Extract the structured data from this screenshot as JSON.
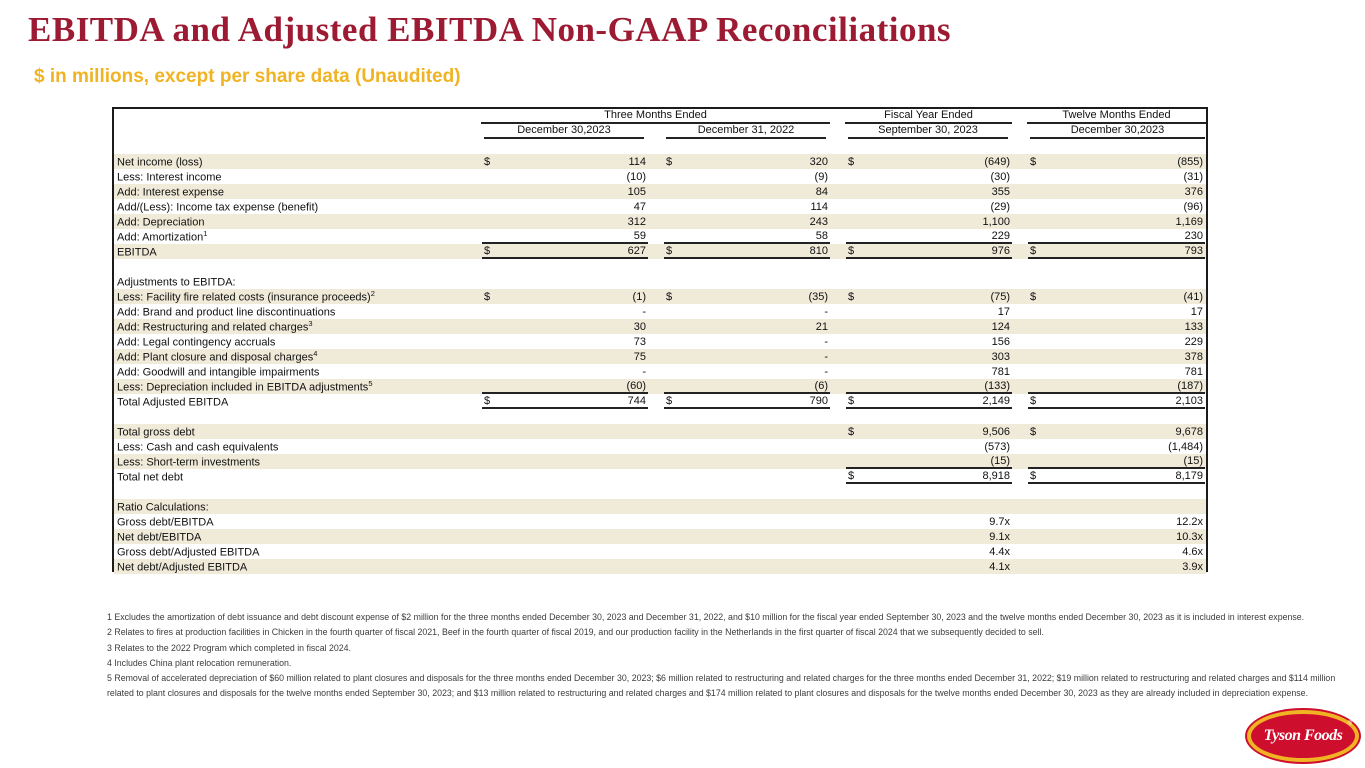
{
  "page": {
    "title": "EBITDA and Adjusted EBITDA Non-GAAP Reconciliations",
    "subtitle": "$ in millions, except per share data (Unaudited)"
  },
  "colors": {
    "title_red": "#9C1B33",
    "gold": "#F0B323",
    "row_beige": "#F0EAD9",
    "logo_red": "#CE0E2D"
  },
  "table": {
    "col_groups": [
      {
        "label": "Three Months Ended",
        "span": 2
      },
      {
        "label": "Fiscal Year Ended",
        "span": 1
      },
      {
        "label": "Twelve Months Ended",
        "span": 1
      }
    ],
    "columns": [
      "December 30,2023",
      "December 31, 2022",
      "September 30, 2023",
      "December 30,2023"
    ],
    "rows": [
      {
        "label": "",
        "bg": "w",
        "cells": [
          null,
          null,
          null,
          null
        ]
      },
      {
        "label": "Net income (loss)",
        "bg": "b",
        "cells": [
          [
            "$",
            "114"
          ],
          [
            "$",
            "320"
          ],
          [
            "$",
            "(649)"
          ],
          [
            "$",
            "(855)"
          ]
        ]
      },
      {
        "label": "Less: Interest income",
        "bg": "w",
        "cells": [
          [
            "",
            "(10)"
          ],
          [
            "",
            "(9)"
          ],
          [
            "",
            "(30)"
          ],
          [
            "",
            "(31)"
          ]
        ]
      },
      {
        "label": "Add: Interest expense",
        "bg": "b",
        "cells": [
          [
            "",
            "105"
          ],
          [
            "",
            "84"
          ],
          [
            "",
            "355"
          ],
          [
            "",
            "376"
          ]
        ]
      },
      {
        "label": "Add/(Less): Income tax expense (benefit)",
        "bg": "w",
        "cells": [
          [
            "",
            "47"
          ],
          [
            "",
            "114"
          ],
          [
            "",
            "(29)"
          ],
          [
            "",
            "(96)"
          ]
        ]
      },
      {
        "label": "Add: Depreciation",
        "bg": "b",
        "cells": [
          [
            "",
            "312"
          ],
          [
            "",
            "243"
          ],
          [
            "",
            "1,100"
          ],
          [
            "",
            "1,169"
          ]
        ]
      },
      {
        "label": "Add: Amortization",
        "sup": "1",
        "bg": "w",
        "line": "bottom",
        "cells": [
          [
            "",
            "59"
          ],
          [
            "",
            "58"
          ],
          [
            "",
            "229"
          ],
          [
            "",
            "230"
          ]
        ]
      },
      {
        "label": "EBITDA",
        "bg": "b",
        "line": "bottom",
        "cells": [
          [
            "$",
            "627"
          ],
          [
            "$",
            "810"
          ],
          [
            "$",
            "976"
          ],
          [
            "$",
            "793"
          ]
        ]
      },
      {
        "label": "",
        "bg": "w",
        "cells": [
          null,
          null,
          null,
          null
        ]
      },
      {
        "label": "Adjustments to EBITDA:",
        "bg": "w",
        "cells": [
          null,
          null,
          null,
          null
        ]
      },
      {
        "label": "Less: Facility fire related costs (insurance proceeds)",
        "sup": "2",
        "bg": "b",
        "cells": [
          [
            "$",
            "(1)"
          ],
          [
            "$",
            "(35)"
          ],
          [
            "$",
            "(75)"
          ],
          [
            "$",
            "(41)"
          ]
        ]
      },
      {
        "label": "Add: Brand and product line discontinuations",
        "bg": "w",
        "cells": [
          [
            "",
            "-"
          ],
          [
            "",
            "-"
          ],
          [
            "",
            "17"
          ],
          [
            "",
            "17"
          ]
        ]
      },
      {
        "label": "Add: Restructuring and related charges",
        "sup": "3",
        "bg": "b",
        "cells": [
          [
            "",
            "30"
          ],
          [
            "",
            "21"
          ],
          [
            "",
            "124"
          ],
          [
            "",
            "133"
          ]
        ]
      },
      {
        "label": "Add: Legal contingency accruals",
        "bg": "w",
        "cells": [
          [
            "",
            "73"
          ],
          [
            "",
            "-"
          ],
          [
            "",
            "156"
          ],
          [
            "",
            "229"
          ]
        ]
      },
      {
        "label": "Add: Plant closure and disposal charges",
        "sup": "4",
        "bg": "b",
        "cells": [
          [
            "",
            "75"
          ],
          [
            "",
            "-"
          ],
          [
            "",
            "303"
          ],
          [
            "",
            "378"
          ]
        ]
      },
      {
        "label": "Add: Goodwill and intangible impairments",
        "bg": "w",
        "cells": [
          [
            "",
            "-"
          ],
          [
            "",
            "-"
          ],
          [
            "",
            "781"
          ],
          [
            "",
            "781"
          ]
        ]
      },
      {
        "label": "Less: Depreciation included in EBITDA adjustments",
        "sup": "5",
        "bg": "b",
        "line": "bottom",
        "cells": [
          [
            "",
            "(60)"
          ],
          [
            "",
            "(6)"
          ],
          [
            "",
            "(133)"
          ],
          [
            "",
            "(187)"
          ]
        ]
      },
      {
        "label": "Total Adjusted EBITDA",
        "bg": "w",
        "line": "bottom",
        "cells": [
          [
            "$",
            "744"
          ],
          [
            "$",
            "790"
          ],
          [
            "$",
            "2,149"
          ],
          [
            "$",
            "2,103"
          ]
        ]
      },
      {
        "label": "",
        "bg": "w",
        "cells": [
          null,
          null,
          null,
          null
        ]
      },
      {
        "label": "Total gross debt",
        "bg": "b",
        "cells": [
          null,
          null,
          [
            "$",
            "9,506"
          ],
          [
            "$",
            "9,678"
          ]
        ]
      },
      {
        "label": "Less: Cash and cash equivalents",
        "bg": "w",
        "cells": [
          null,
          null,
          [
            "",
            "(573)"
          ],
          [
            "",
            "(1,484)"
          ]
        ]
      },
      {
        "label": "Less: Short-term investments",
        "bg": "b",
        "line": "bottom",
        "cells": [
          null,
          null,
          [
            "",
            "(15)"
          ],
          [
            "",
            "(15)"
          ]
        ]
      },
      {
        "label": "Total net debt",
        "bg": "w",
        "line": "bottom",
        "cells": [
          null,
          null,
          [
            "$",
            "8,918"
          ],
          [
            "$",
            "8,179"
          ]
        ]
      },
      {
        "label": "",
        "bg": "w",
        "cells": [
          null,
          null,
          null,
          null
        ]
      },
      {
        "label": "Ratio Calculations:",
        "bg": "b",
        "cells": [
          null,
          null,
          null,
          null
        ]
      },
      {
        "label": "Gross debt/EBITDA",
        "bg": "w",
        "cells": [
          null,
          null,
          [
            "",
            "9.7x"
          ],
          [
            "",
            "12.2x"
          ]
        ]
      },
      {
        "label": "Net debt/EBITDA",
        "bg": "b",
        "cells": [
          null,
          null,
          [
            "",
            "9.1x"
          ],
          [
            "",
            "10.3x"
          ]
        ]
      },
      {
        "label": "Gross debt/Adjusted EBITDA",
        "bg": "w",
        "cells": [
          null,
          null,
          [
            "",
            "4.4x"
          ],
          [
            "",
            "4.6x"
          ]
        ]
      },
      {
        "label": "Net debt/Adjusted EBITDA",
        "bg": "b",
        "cells": [
          null,
          null,
          [
            "",
            "4.1x"
          ],
          [
            "",
            "3.9x"
          ]
        ]
      }
    ]
  },
  "footnotes": [
    "1 Excludes the amortization of debt issuance and debt discount expense of $2 million for the three months ended December 30, 2023 and December 31, 2022, and $10 million for the fiscal year ended September 30, 2023 and the twelve months ended December 30, 2023 as it is included in interest expense.",
    "2 Relates to fires at production facilities in Chicken in the fourth quarter of fiscal 2021, Beef in the fourth quarter of fiscal 2019, and our production facility in the Netherlands in the first quarter of fiscal 2024 that we subsequently decided to sell.",
    "3 Relates to the 2022 Program which completed in fiscal 2024.",
    "4 Includes China plant relocation remuneration.",
    "5 Removal of accelerated depreciation of $60 million related to plant closures and disposals for the three months ended December 30, 2023; $6 million related to restructuring and related charges for the three months ended December 31, 2022; $19 million related to restructuring and related charges and $114 million related to plant closures and disposals for the twelve months ended September 30, 2023; and $13 million related to restructuring and related charges and $174 million related to plant closures and disposals for the twelve months ended December 30, 2023 as they are already included in depreciation expense."
  ],
  "logo": {
    "text": "Tyson Foods",
    "reg": "®"
  }
}
